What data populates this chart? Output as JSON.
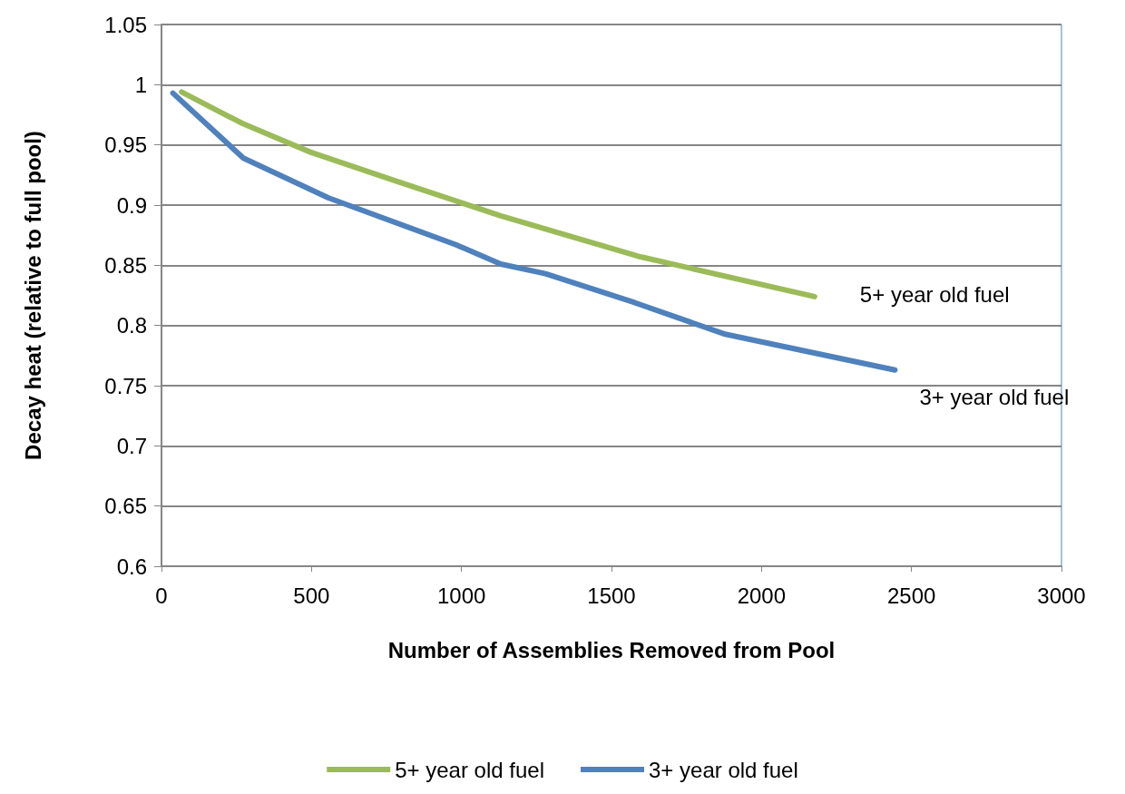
{
  "chart_data": {
    "type": "line",
    "xlabel": "Number of Assemblies Removed from Pool",
    "ylabel": "Decay heat (relative to full pool)",
    "xlim": [
      0,
      3000
    ],
    "xticks": [
      0,
      500,
      1000,
      1500,
      2000,
      2500,
      3000
    ],
    "ylim": [
      0.6,
      1.05
    ],
    "yticks": [
      0.6,
      0.65,
      0.7,
      0.75,
      0.8,
      0.85,
      0.9,
      0.95,
      1,
      1.05
    ],
    "grid": "y",
    "legend": "bottom",
    "marker": "none",
    "line_style": "solid",
    "series": [
      {
        "name": "5+ year old fuel",
        "color": "#9bbb59",
        "x": [
          67,
          268,
          496,
          794,
          1131,
          1597,
          2177
        ],
        "values": [
          0.994,
          0.968,
          0.944,
          0.919,
          0.891,
          0.857,
          0.824
        ]
      },
      {
        "name": "3+ year old fuel",
        "color": "#4f81bd",
        "x": [
          38,
          273,
          556,
          982,
          1131,
          1280,
          1577,
          1875,
          2445
        ],
        "values": [
          0.993,
          0.939,
          0.906,
          0.867,
          0.851,
          0.843,
          0.819,
          0.793,
          0.763
        ]
      }
    ],
    "annotations": [
      "5+ year old fuel",
      "3+ year old fuel"
    ]
  }
}
